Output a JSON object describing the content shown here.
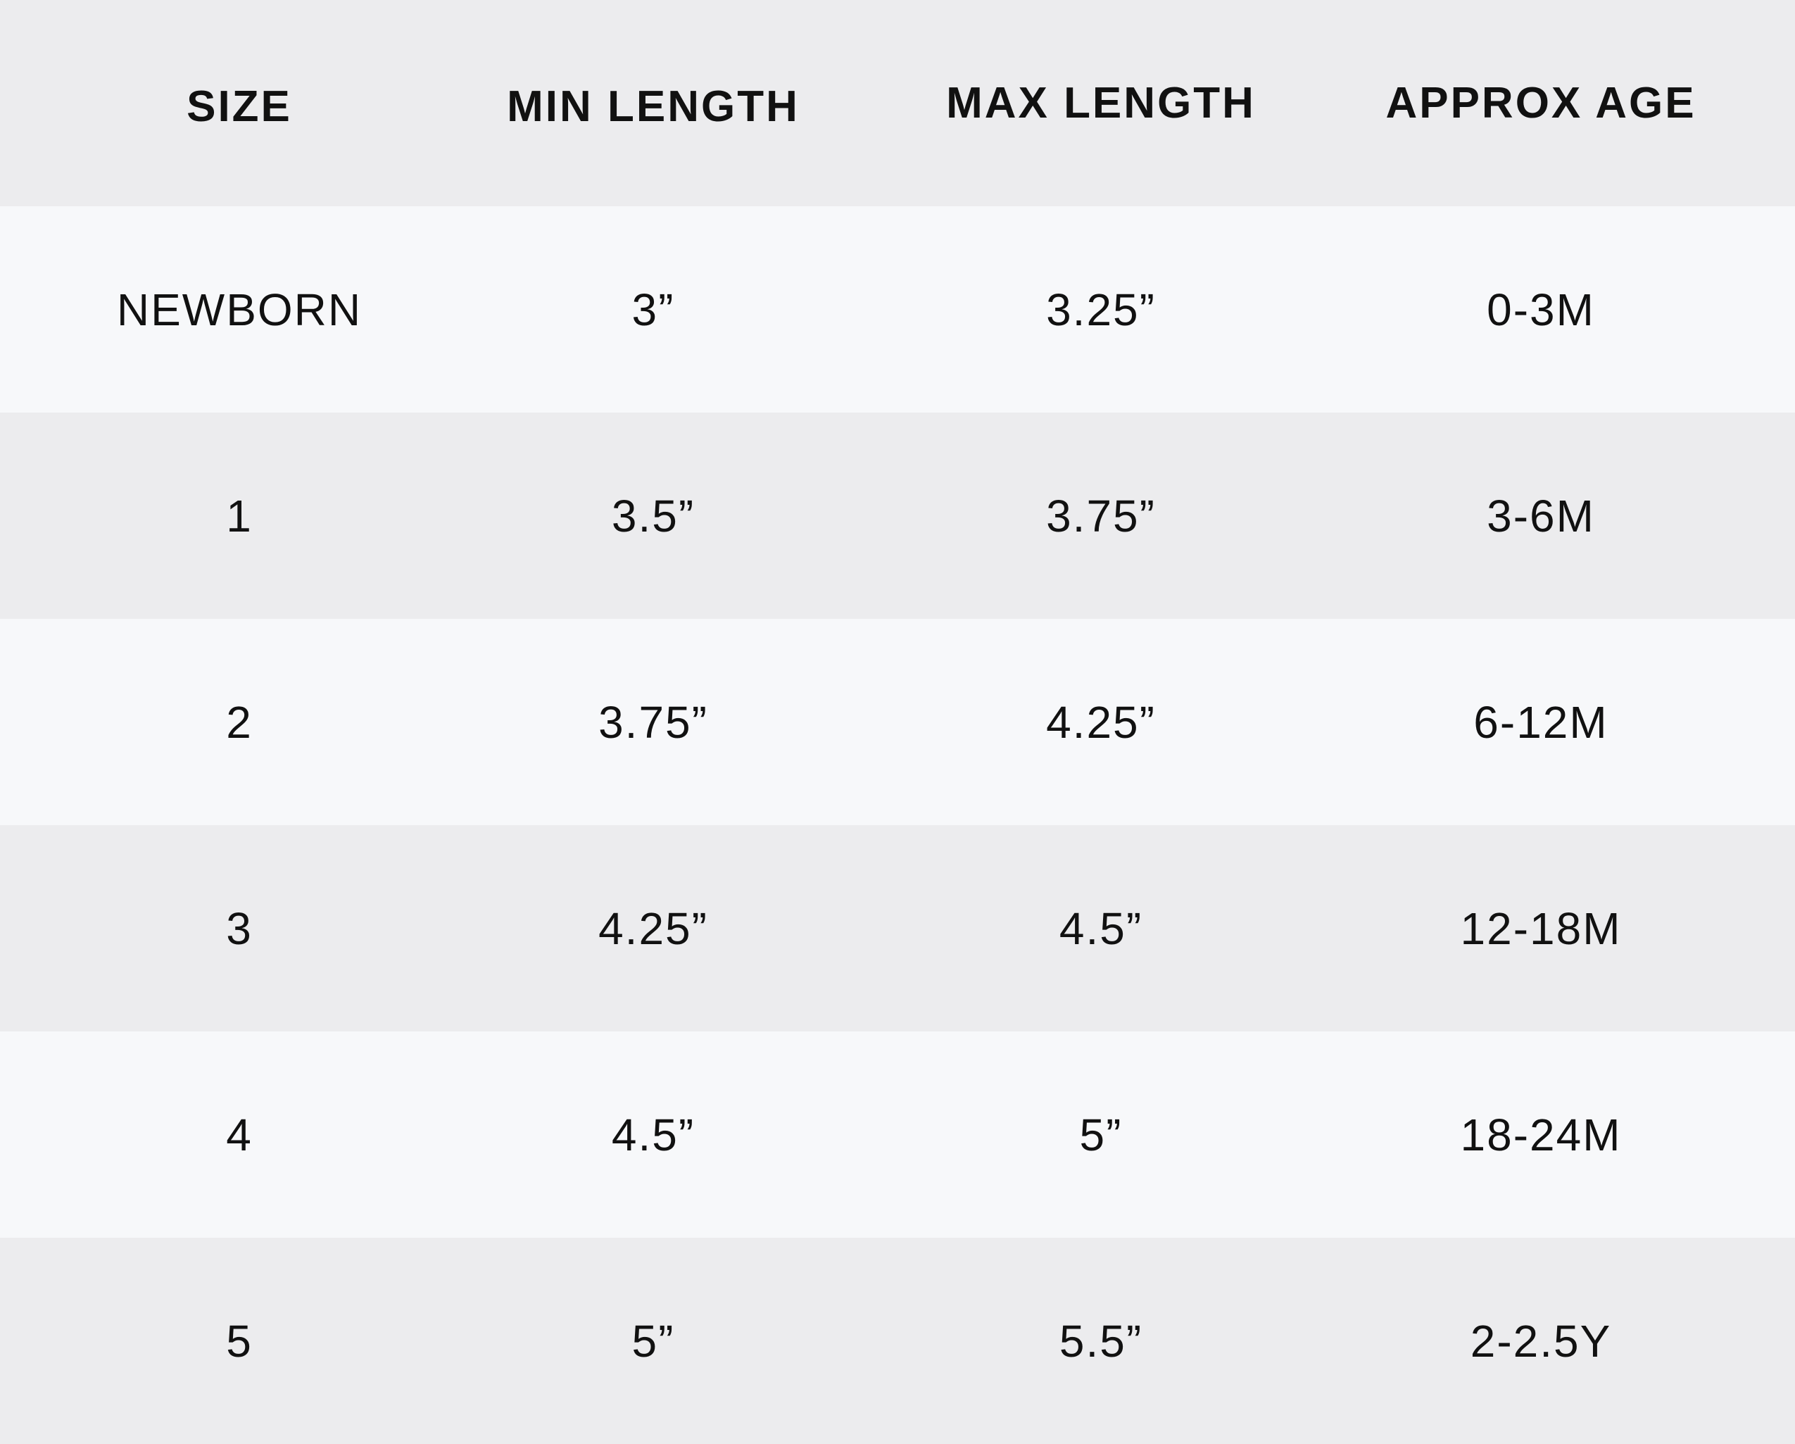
{
  "table": {
    "headers": [
      "SIZE",
      "MIN LENGTH",
      "MAX LENGTH",
      "APPROX AGE"
    ],
    "rows": [
      [
        "NEWBORN",
        "3”",
        "3.25”",
        "0-3M"
      ],
      [
        "1",
        "3.5”",
        "3.75”",
        "3-6M"
      ],
      [
        "2",
        "3.75”",
        "4.25”",
        "6-12M"
      ],
      [
        "3",
        "4.25”",
        "4.5”",
        "12-18M"
      ],
      [
        "4",
        "4.5”",
        "5”",
        "18-24M"
      ],
      [
        "5",
        "5”",
        "5.5”",
        "2-2.5Y"
      ]
    ]
  },
  "colors": {
    "header_bg": "#ececee",
    "row_light": "#f7f8fa",
    "row_dark": "#ececee",
    "text": "#111111"
  }
}
